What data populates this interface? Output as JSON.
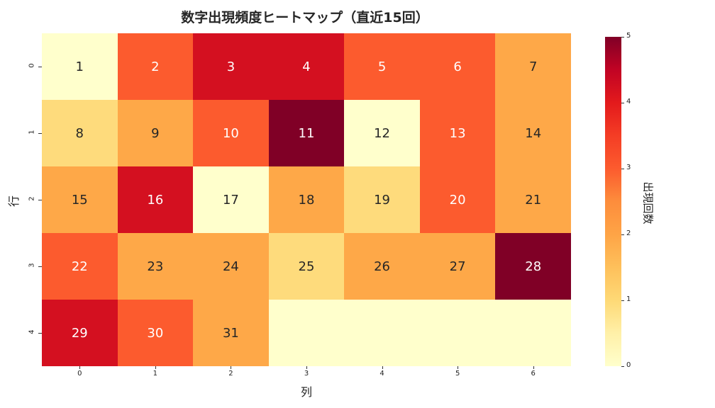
{
  "chart_data": {
    "type": "heatmap",
    "title": "数字出現頻度ヒートマップ（直近15回）",
    "xlabel": "列",
    "ylabel": "行",
    "x_ticks": [
      "0",
      "1",
      "2",
      "3",
      "4",
      "5",
      "6"
    ],
    "y_ticks": [
      "0",
      "1",
      "2",
      "3",
      "4"
    ],
    "colorbar": {
      "label": "出現回数",
      "range": [
        0,
        5
      ],
      "ticks": [
        "0",
        "1",
        "2",
        "3",
        "4",
        "5"
      ],
      "colormap": "YlOrRd"
    },
    "annotations": [
      [
        "1",
        "2",
        "3",
        "4",
        "5",
        "6",
        "7"
      ],
      [
        "8",
        "9",
        "10",
        "11",
        "12",
        "13",
        "14"
      ],
      [
        "15",
        "16",
        "17",
        "18",
        "19",
        "20",
        "21"
      ],
      [
        "22",
        "23",
        "24",
        "25",
        "26",
        "27",
        "28"
      ],
      [
        "29",
        "30",
        "31",
        "",
        "",
        "",
        ""
      ]
    ],
    "values": [
      [
        0,
        3,
        4,
        4,
        3,
        3,
        2
      ],
      [
        1,
        2,
        3,
        5,
        0,
        3,
        2
      ],
      [
        2,
        4,
        0,
        2,
        1,
        3,
        2
      ],
      [
        3,
        2,
        2,
        1,
        2,
        2,
        5
      ],
      [
        4,
        3,
        2,
        0,
        0,
        0,
        0
      ]
    ]
  },
  "palette": [
    "#ffffcc",
    "#fedb7c",
    "#fea848",
    "#fc5b2e",
    "#d41020",
    "#800026"
  ],
  "text_colors": [
    "#262626",
    "#262626",
    "#262626",
    "#ffffff",
    "#ffffff",
    "#ffffff"
  ]
}
